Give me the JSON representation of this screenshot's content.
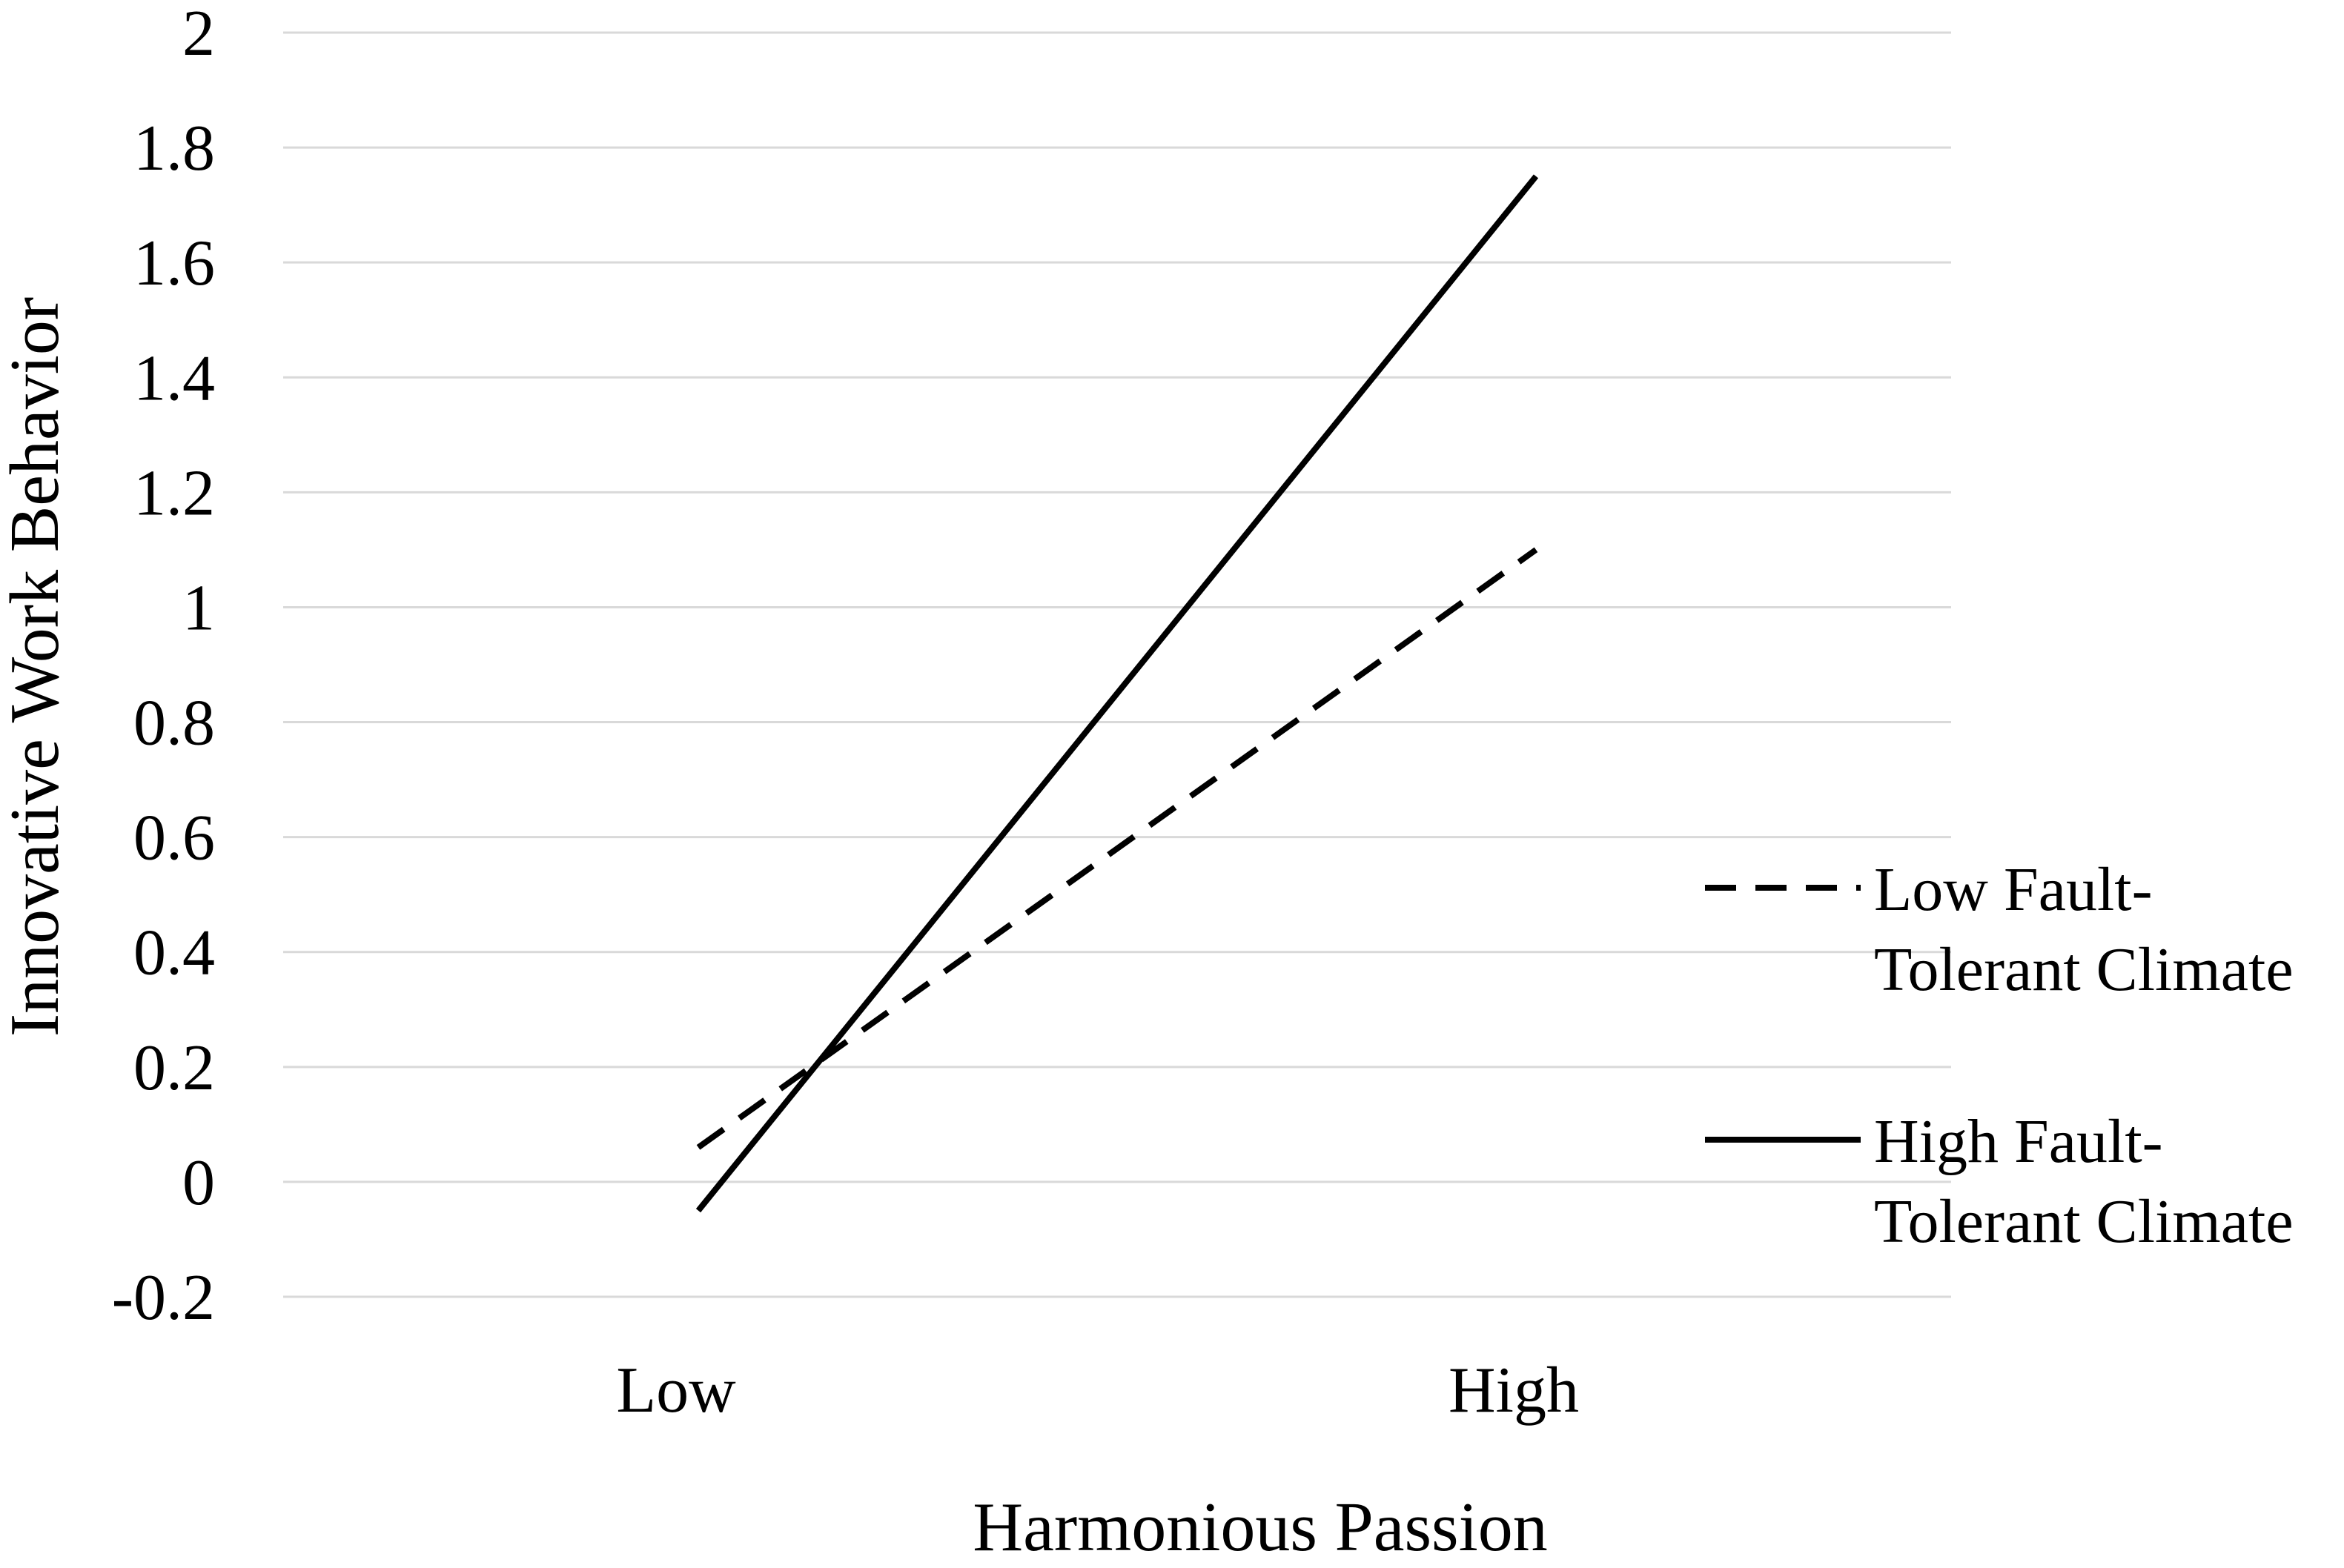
{
  "chart_data": {
    "type": "line",
    "title": "",
    "xlabel": "Harmonious Passion",
    "ylabel": "Innovative Work Behavior",
    "categories": [
      "Low",
      "High"
    ],
    "ylim": [
      -0.2,
      2
    ],
    "yticks": [
      "-0.2",
      "0",
      "0.2",
      "0.4",
      "0.6",
      "0.8",
      "1",
      "1.2",
      "1.4",
      "1.6",
      "1.8",
      "2"
    ],
    "ytick_values": [
      -0.2,
      0,
      0.2,
      0.4,
      0.6,
      0.8,
      1.0,
      1.2,
      1.4,
      1.6,
      1.8,
      2.0
    ],
    "grid": "horizontal",
    "legend_position": "right",
    "series": [
      {
        "name_lines": [
          "Low Fault-",
          "Tolerant Climate"
        ],
        "values": [
          0.06,
          1.1
        ],
        "line_style": "dashed",
        "color": "#000000"
      },
      {
        "name_lines": [
          "High Fault-",
          "Tolerant Climate"
        ],
        "values": [
          -0.05,
          1.75
        ],
        "line_style": "solid",
        "color": "#000000"
      }
    ]
  }
}
